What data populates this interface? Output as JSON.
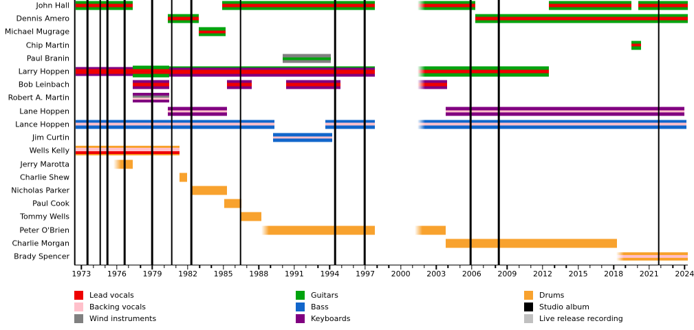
{
  "chart_data": {
    "type": "timeline",
    "x_domain": [
      1972.4,
      2024.27
    ],
    "x_tick_start": 1973,
    "x_tick_end": 2024,
    "x_major_interval": 3,
    "x_minor_interval": 1,
    "colors": {
      "lead_vocals": "#ee0000",
      "backing_vocals": "#ffc0cb",
      "wind_instruments": "#808080",
      "guitars": "#00a30e",
      "bass": "#1166cb",
      "keyboards": "#800080",
      "drums": "#f8a22e",
      "studio_album": "#000000",
      "live_release": "#c0c0c0"
    },
    "album_lines": [
      1972.45,
      1973.5,
      1974.6,
      1975.2,
      1976.65,
      1979.0,
      1980.65,
      1982.3,
      1986.45,
      1994.45,
      1996.95,
      2005.9,
      2008.3,
      2021.8
    ],
    "members": [
      {
        "name": "John Hall",
        "segments": [
          {
            "start": 1972.5,
            "end": 1977.35,
            "stripes": [
              [
                "guitars",
                4
              ],
              [
                "lead_vocals",
                4.5
              ],
              [
                "guitars",
                4
              ]
            ]
          },
          {
            "start": 1984.9,
            "end": 1997.8,
            "stripes": [
              [
                "guitars",
                4
              ],
              [
                "lead_vocals",
                4.5
              ],
              [
                "guitars",
                4
              ]
            ]
          },
          {
            "start": 2001.4,
            "end": 2006.3,
            "fade": true,
            "stripes": [
              [
                "guitars",
                4
              ],
              [
                "lead_vocals",
                4.5
              ],
              [
                "guitars",
                4
              ]
            ]
          },
          {
            "start": 2012.5,
            "end": 2019.5,
            "stripes": [
              [
                "guitars",
                4
              ],
              [
                "lead_vocals",
                4.5
              ],
              [
                "guitars",
                4
              ]
            ]
          },
          {
            "start": 2020.1,
            "end": 2024.27,
            "stripes": [
              [
                "guitars",
                4
              ],
              [
                "lead_vocals",
                4.5
              ],
              [
                "guitars",
                4
              ]
            ]
          }
        ]
      },
      {
        "name": "Dennis Amero",
        "segments": [
          {
            "start": 1980.3,
            "end": 1982.9,
            "stripes": [
              [
                "guitars",
                4
              ],
              [
                "lead_vocals",
                4.5
              ],
              [
                "guitars",
                4
              ]
            ]
          },
          {
            "start": 2006.3,
            "end": 2024.27,
            "stripes": [
              [
                "guitars",
                4
              ],
              [
                "lead_vocals",
                4.5
              ],
              [
                "guitars",
                4
              ]
            ]
          }
        ]
      },
      {
        "name": "Michael Mugrage",
        "segments": [
          {
            "start": 1982.9,
            "end": 1985.2,
            "stripes": [
              [
                "guitars",
                4
              ],
              [
                "lead_vocals",
                4.5
              ],
              [
                "guitars",
                4
              ]
            ]
          }
        ]
      },
      {
        "name": "Chip Martin",
        "segments": [
          {
            "start": 2019.5,
            "end": 2020.3,
            "stripes": [
              [
                "guitars",
                4
              ],
              [
                "lead_vocals",
                4.5
              ],
              [
                "guitars",
                4
              ]
            ]
          }
        ]
      },
      {
        "name": "Paul Branin",
        "segments": [
          {
            "start": 1990.0,
            "end": 1994.1,
            "stripes": [
              [
                "wind_instruments",
                4.5
              ],
              [
                "guitars",
                3.5
              ],
              [
                "wind_instruments",
                4
              ]
            ]
          }
        ]
      },
      {
        "name": "Larry Hoppen",
        "segments": [
          {
            "start": 1972.5,
            "end": 1977.35,
            "stripes": [
              [
                "keyboards",
                3
              ],
              [
                "lead_vocals",
                6
              ],
              [
                "keyboards",
                3
              ]
            ]
          },
          {
            "start": 1977.35,
            "end": 1980.4,
            "h": 17,
            "stripes": [
              [
                "guitars",
                4.5
              ],
              [
                "lead_vocals",
                6
              ],
              [
                "guitars",
                4.5
              ]
            ]
          },
          {
            "start": 1980.4,
            "end": 1997.8,
            "h": 15,
            "stripes": [
              [
                "guitars",
                2
              ],
              [
                "keyboards",
                3
              ],
              [
                "lead_vocals",
                6
              ],
              [
                "keyboards",
                4
              ]
            ]
          },
          {
            "start": 2001.4,
            "end": 2012.5,
            "h": 15,
            "fade": true,
            "stripes": [
              [
                "guitars",
                4.5
              ],
              [
                "lead_vocals",
                5.5
              ],
              [
                "guitars",
                4.5
              ]
            ]
          }
        ]
      },
      {
        "name": "Bob Leinbach",
        "segments": [
          {
            "start": 1977.35,
            "end": 1980.4,
            "stripes": [
              [
                "keyboards",
                3.5
              ],
              [
                "lead_vocals",
                5
              ],
              [
                "keyboards",
                3.5
              ]
            ]
          },
          {
            "start": 1985.3,
            "end": 1987.4,
            "stripes": [
              [
                "keyboards",
                3.5
              ],
              [
                "lead_vocals",
                5
              ],
              [
                "keyboards",
                3.5
              ]
            ]
          },
          {
            "start": 1990.3,
            "end": 1994.9,
            "stripes": [
              [
                "keyboards",
                3.5
              ],
              [
                "lead_vocals",
                5
              ],
              [
                "keyboards",
                3.5
              ]
            ]
          },
          {
            "start": 2001.4,
            "end": 2003.9,
            "fade": true,
            "stripes": [
              [
                "keyboards",
                3.5
              ],
              [
                "lead_vocals",
                5
              ],
              [
                "keyboards",
                3.5
              ]
            ]
          }
        ]
      },
      {
        "name": "Robert A. Martin",
        "segments": [
          {
            "start": 1977.35,
            "end": 1980.4,
            "h": 14,
            "stripes": [
              [
                "keyboards",
                3.5
              ],
              [
                "wind_instruments",
                3
              ],
              [
                "backing_vocals",
                3.5
              ],
              [
                "keyboards",
                4
              ]
            ]
          }
        ]
      },
      {
        "name": "Lane Hoppen",
        "segments": [
          {
            "start": 1980.3,
            "end": 1985.3,
            "stripes": [
              [
                "keyboards",
                4.5
              ],
              [
                "backing_vocals",
                3
              ],
              [
                "keyboards",
                4.5
              ]
            ]
          },
          {
            "start": 2003.8,
            "end": 2024.0,
            "stripes": [
              [
                "keyboards",
                4.5
              ],
              [
                "backing_vocals",
                3
              ],
              [
                "keyboards",
                4.5
              ]
            ]
          }
        ]
      },
      {
        "name": "Lance Hoppen",
        "segments": [
          {
            "start": 1972.5,
            "end": 1989.3,
            "stripes": [
              [
                "bass",
                4.5
              ],
              [
                "backing_vocals",
                3.5
              ],
              [
                "bass",
                5
              ]
            ]
          },
          {
            "start": 1993.6,
            "end": 1997.8,
            "stripes": [
              [
                "bass",
                4.5
              ],
              [
                "backing_vocals",
                3.5
              ],
              [
                "bass",
                5
              ]
            ]
          },
          {
            "start": 2001.4,
            "end": 2024.15,
            "fade": true,
            "stripes": [
              [
                "bass",
                4.5
              ],
              [
                "backing_vocals",
                3.5
              ],
              [
                "bass",
                5
              ]
            ]
          }
        ]
      },
      {
        "name": "Jim Curtin",
        "segments": [
          {
            "start": 1989.2,
            "end": 1994.2,
            "stripes": [
              [
                "bass",
                4.5
              ],
              [
                "backing_vocals",
                3
              ],
              [
                "bass",
                4.5
              ]
            ]
          }
        ]
      },
      {
        "name": "Wells Kelly",
        "segments": [
          {
            "start": 1972.5,
            "end": 1981.3,
            "h": 14,
            "stripes": [
              [
                "drums",
                2.5
              ],
              [
                "backing_vocals",
                5
              ],
              [
                "lead_vocals",
                3.5
              ],
              [
                "drums",
                2.5
              ]
            ]
          }
        ]
      },
      {
        "name": "Jerry Marotta",
        "segments": [
          {
            "start": 1975.7,
            "end": 1977.35,
            "fade": true,
            "stripes": [
              [
                "drums",
                1
              ]
            ]
          }
        ]
      },
      {
        "name": "Charlie Shew",
        "segments": [
          {
            "start": 1981.3,
            "end": 1981.95,
            "stripes": [
              [
                "drums",
                1
              ]
            ]
          }
        ]
      },
      {
        "name": "Nicholas Parker",
        "segments": [
          {
            "start": 1982.3,
            "end": 1985.3,
            "stripes": [
              [
                "drums",
                1
              ]
            ]
          }
        ]
      },
      {
        "name": "Paul Cook",
        "segments": [
          {
            "start": 1985.1,
            "end": 1986.55,
            "stripes": [
              [
                "drums",
                1
              ]
            ]
          }
        ]
      },
      {
        "name": "Tommy Wells",
        "segments": [
          {
            "start": 1986.5,
            "end": 1988.2,
            "stripes": [
              [
                "drums",
                1
              ]
            ]
          }
        ]
      },
      {
        "name": "Peter O'Brien",
        "segments": [
          {
            "start": 1988.2,
            "end": 1997.8,
            "fade": true,
            "stripes": [
              [
                "drums",
                1
              ]
            ]
          },
          {
            "start": 2001.2,
            "end": 2003.8,
            "fade": true,
            "stripes": [
              [
                "drums",
                1
              ]
            ]
          }
        ]
      },
      {
        "name": "Charlie Morgan",
        "segments": [
          {
            "start": 2003.8,
            "end": 2018.3,
            "stripes": [
              [
                "drums",
                1
              ]
            ]
          }
        ]
      },
      {
        "name": "Brady Spencer",
        "segments": [
          {
            "start": 2018.2,
            "end": 2024.27,
            "h": 12,
            "fade": true,
            "stripes": [
              [
                "drums",
                4
              ],
              [
                "backing_vocals",
                3
              ],
              [
                "drums",
                4
              ]
            ]
          }
        ]
      }
    ],
    "legend_columns": [
      [
        {
          "key": "lead_vocals",
          "label": "Lead vocals"
        },
        {
          "key": "backing_vocals",
          "label": "Backing vocals"
        },
        {
          "key": "wind_instruments",
          "label": "Wind instruments"
        }
      ],
      [
        {
          "key": "guitars",
          "label": "Guitars"
        },
        {
          "key": "bass",
          "label": "Bass"
        },
        {
          "key": "keyboards",
          "label": "Keyboards"
        }
      ],
      [
        {
          "key": "drums",
          "label": "Drums"
        },
        {
          "key": "studio_album",
          "label": "Studio album"
        },
        {
          "key": "live_release",
          "label": "Live release recording"
        }
      ]
    ]
  }
}
